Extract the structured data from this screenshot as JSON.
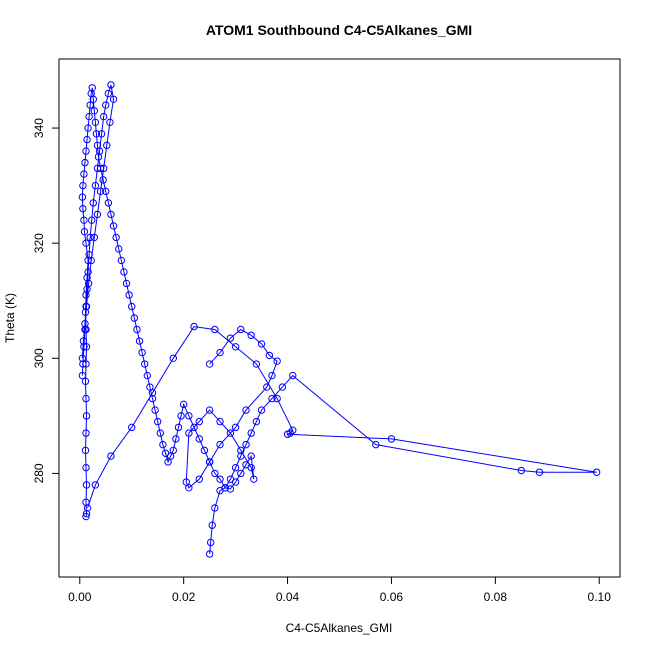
{
  "chart_data": {
    "type": "scatter",
    "title": "ATOM1 Southbound C4-C5Alkanes_GMI",
    "xlabel": "C4-C5Alkanes_GMI",
    "ylabel": "Theta (K)",
    "xlim": [
      -0.004,
      0.104
    ],
    "ylim": [
      262,
      352
    ],
    "x_ticks": [
      0.0,
      0.02,
      0.04,
      0.06,
      0.08,
      0.1
    ],
    "x_tick_labels": [
      "0.00",
      "0.02",
      "0.04",
      "0.06",
      "0.08",
      "0.10"
    ],
    "y_ticks": [
      280,
      300,
      320,
      340
    ],
    "y_tick_labels": [
      "280",
      "300",
      "320",
      "340"
    ],
    "grid": false,
    "legend": "none",
    "series_color": "#0000ff",
    "marker": "open-circle",
    "line": true,
    "series": [
      {
        "x": [
          0.0012,
          0.0013,
          0.0012,
          0.0013,
          0.0012,
          0.0011,
          0.0012,
          0.0013,
          0.0012,
          0.0011,
          0.0012,
          0.0013,
          0.0012,
          0.0011,
          0.0012,
          0.0014,
          0.0016,
          0.0012,
          0.0009,
          0.0008,
          0.0006,
          0.0005,
          0.0006,
          0.0008,
          0.001,
          0.0012,
          0.0014,
          0.0016,
          0.0018,
          0.002,
          0.0022,
          0.0024,
          0.0026,
          0.0028,
          0.003,
          0.0032,
          0.0034,
          0.0036,
          0.004,
          0.0045,
          0.005,
          0.0055,
          0.006,
          0.0065,
          0.007,
          0.0075,
          0.008,
          0.0085,
          0.009,
          0.0095,
          0.01,
          0.0105,
          0.011,
          0.0115,
          0.012,
          0.0125,
          0.013,
          0.0135,
          0.014,
          0.0145,
          0.015,
          0.0155,
          0.016,
          0.0165,
          0.017,
          0.0175,
          0.018,
          0.0185,
          0.019,
          0.0195,
          0.02,
          0.021,
          0.022,
          0.023,
          0.024,
          0.025,
          0.026,
          0.027,
          0.028,
          0.029,
          0.03,
          0.031,
          0.032,
          0.033,
          0.034,
          0.035,
          0.037,
          0.039,
          0.041,
          0.057,
          0.085,
          0.0885,
          0.0995,
          0.06,
          0.04,
          0.0405,
          0.041,
          0.038,
          0.034,
          0.03,
          0.026,
          0.022,
          0.018,
          0.014,
          0.01,
          0.006,
          0.003,
          0.0015
        ],
        "y": [
          272.5,
          273.0,
          275.0,
          278.0,
          281.0,
          284.0,
          287.0,
          290.0,
          293.0,
          296.0,
          299.0,
          302.0,
          305.0,
          308.0,
          311.0,
          314.0,
          317.0,
          320.0,
          322.0,
          324.0,
          326.0,
          328.0,
          330.0,
          332.0,
          334.0,
          336.0,
          338.0,
          340.0,
          342.0,
          344.0,
          346.0,
          347.0,
          345.0,
          343.0,
          341.0,
          339.0,
          337.0,
          335.0,
          333.0,
          331.0,
          329.0,
          327.0,
          325.0,
          323.0,
          321.0,
          319.0,
          317.0,
          315.0,
          313.0,
          311.0,
          309.0,
          307.0,
          305.0,
          303.0,
          301.0,
          299.0,
          297.0,
          295.0,
          293.0,
          291.0,
          289.0,
          287.0,
          285.0,
          283.5,
          282.0,
          283.0,
          284.0,
          286.0,
          288.0,
          290.0,
          292.0,
          290.0,
          288.0,
          286.0,
          284.0,
          282.0,
          280.0,
          279.0,
          277.5,
          279.0,
          281.0,
          283.0,
          285.0,
          287.0,
          289.0,
          291.0,
          293.0,
          295.0,
          297.0,
          285.0,
          280.5,
          280.2,
          280.2,
          286.0,
          286.8,
          287.0,
          287.5,
          293.0,
          299.0,
          302.0,
          305.0,
          305.5,
          300.0,
          294.0,
          288.0,
          283.0,
          278.0,
          274.0
        ]
      },
      {
        "x": [
          0.025,
          0.0252,
          0.0255,
          0.026,
          0.027,
          0.028,
          0.029,
          0.03,
          0.031,
          0.032,
          0.033,
          0.0335,
          0.033,
          0.031,
          0.029,
          0.027,
          0.025,
          0.023,
          0.021,
          0.0205,
          0.021,
          0.023,
          0.025,
          0.027,
          0.03,
          0.032,
          0.036,
          0.037,
          0.038,
          0.0365,
          0.035,
          0.033,
          0.031,
          0.029,
          0.027,
          0.025
        ],
        "y": [
          266.0,
          268.0,
          271.0,
          274.0,
          277.0,
          277.5,
          277.3,
          278.5,
          280.0,
          281.5,
          283.0,
          279.0,
          281.0,
          284.0,
          287.0,
          289.0,
          291.0,
          289.0,
          287.0,
          278.5,
          277.5,
          279.0,
          282.0,
          285.0,
          288.0,
          291.0,
          295.0,
          297.0,
          299.5,
          300.5,
          302.5,
          304.0,
          305.0,
          303.5,
          301.0,
          299.0
        ]
      },
      {
        "x": [
          0.0005,
          0.0007,
          0.001,
          0.0012,
          0.0014,
          0.0016,
          0.0018,
          0.002,
          0.0023,
          0.0026,
          0.003,
          0.0034,
          0.0038,
          0.0042,
          0.0046,
          0.005,
          0.0055,
          0.006,
          0.0065,
          0.0058,
          0.0052,
          0.0046,
          0.004,
          0.0034,
          0.0028,
          0.0022,
          0.0017,
          0.0013,
          0.001,
          0.0008,
          0.0006,
          0.0005
        ],
        "y": [
          300.0,
          303.0,
          306.0,
          309.0,
          312.0,
          315.0,
          318.0,
          321.0,
          324.0,
          327.0,
          330.0,
          333.0,
          336.0,
          339.0,
          342.0,
          344.0,
          346.0,
          347.5,
          345.0,
          341.0,
          337.0,
          333.0,
          329.0,
          325.0,
          321.0,
          317.0,
          313.0,
          309.0,
          305.0,
          302.0,
          299.0,
          297.0
        ]
      }
    ]
  }
}
